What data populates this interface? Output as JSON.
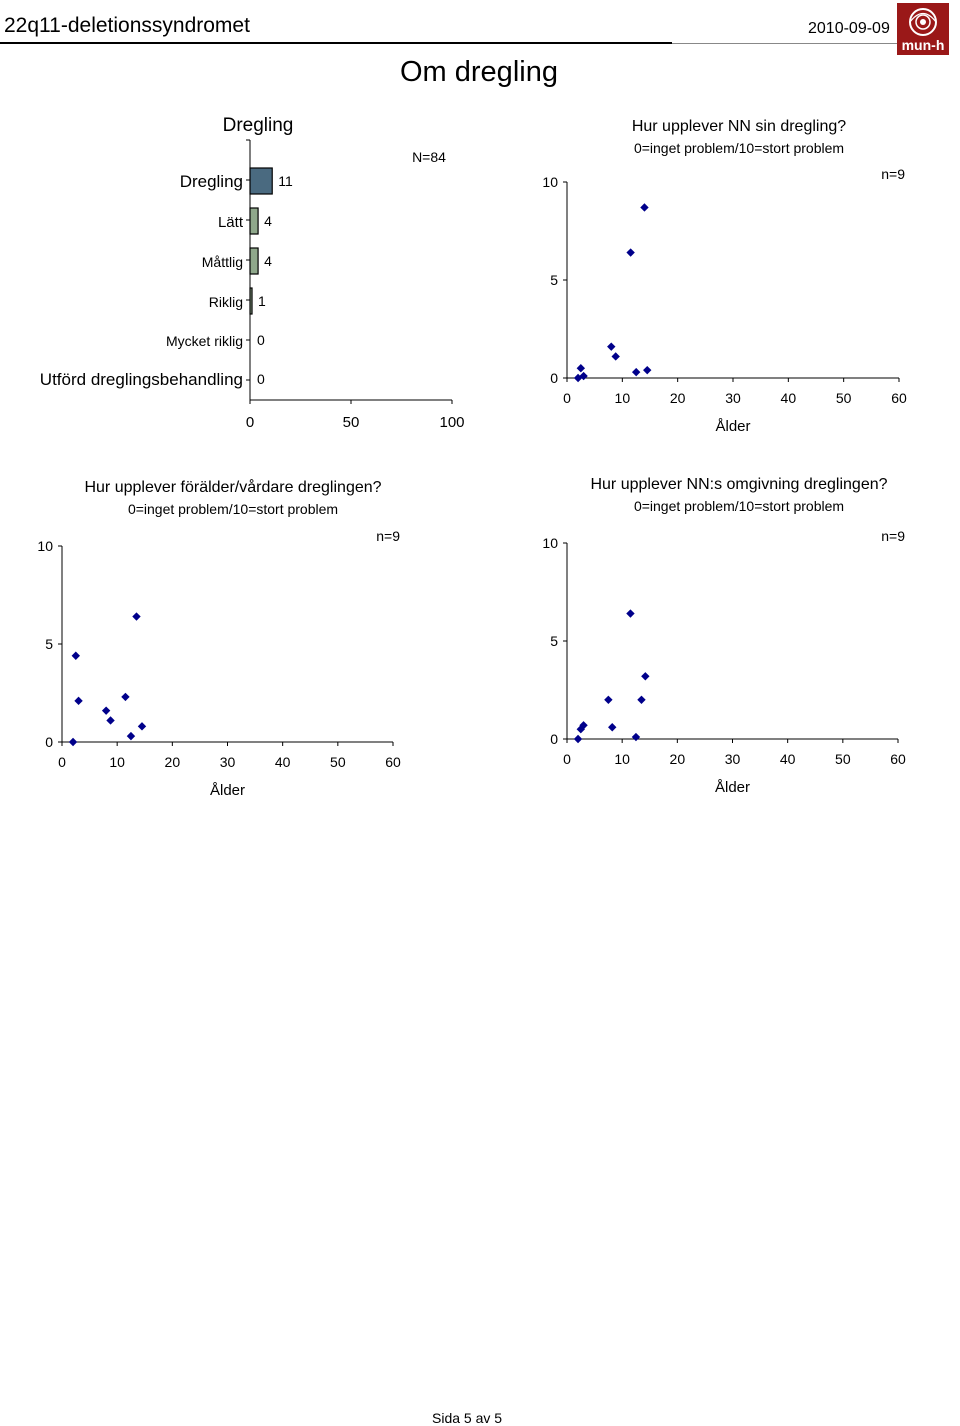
{
  "header": {
    "title": "22q11-deletionssyndromet",
    "date": "2010-09-09",
    "logo_text": "mun-h",
    "logo_color": "#9a1818"
  },
  "page": {
    "heading": "Om dregling",
    "footer": "Sida 5 av 5"
  },
  "chart_data": [
    {
      "type": "bar",
      "orientation": "horizontal",
      "title": "Dregling",
      "n_label": "N=84",
      "categories": [
        "Dregling",
        "Lätt",
        "Måttlig",
        "Riklig",
        "Mycket riklig",
        "Utförd dreglingsbehandling"
      ],
      "values": [
        11,
        4,
        4,
        1,
        0,
        0
      ],
      "value_labels": [
        "11",
        "4",
        "4",
        "1",
        "0",
        "0"
      ],
      "bar_colors": [
        "#4a6a80",
        "#8fa88b",
        "#8fa88b",
        "#8fa88b",
        "#8fa88b",
        "#8fa88b"
      ],
      "xlim": [
        0,
        100
      ],
      "x_ticks": [
        "0",
        "50",
        "100"
      ]
    },
    {
      "type": "scatter",
      "title": "Hur upplever NN sin dregling?",
      "subtitle": "0=inget problem/10=stort problem",
      "n_label": "n=9",
      "xlabel": "Ålder",
      "xlim": [
        0,
        60
      ],
      "ylim": [
        0,
        10
      ],
      "x_ticks": [
        "0",
        "10",
        "20",
        "30",
        "40",
        "50",
        "60"
      ],
      "y_ticks": [
        "0",
        "5",
        "10"
      ],
      "marker_color": "#00008b",
      "points": [
        [
          2.0,
          0.0
        ],
        [
          2.5,
          0.5
        ],
        [
          3.0,
          0.1
        ],
        [
          8.0,
          1.6
        ],
        [
          8.8,
          1.1
        ],
        [
          11.5,
          6.4
        ],
        [
          12.5,
          0.3
        ],
        [
          14.0,
          8.7
        ],
        [
          14.5,
          0.4
        ]
      ]
    },
    {
      "type": "scatter",
      "title": "Hur upplever förälder/vårdare dreglingen?",
      "subtitle": "0=inget problem/10=stort problem",
      "n_label": "n=9",
      "xlabel": "Ålder",
      "xlim": [
        0,
        60
      ],
      "ylim": [
        0,
        10
      ],
      "x_ticks": [
        "0",
        "10",
        "20",
        "30",
        "40",
        "50",
        "60"
      ],
      "y_ticks": [
        "0",
        "5",
        "10"
      ],
      "marker_color": "#00008b",
      "points": [
        [
          2.0,
          0.0
        ],
        [
          2.5,
          4.4
        ],
        [
          3.0,
          2.1
        ],
        [
          8.0,
          1.6
        ],
        [
          8.8,
          1.1
        ],
        [
          11.5,
          2.3
        ],
        [
          12.5,
          0.3
        ],
        [
          13.5,
          6.4
        ],
        [
          14.5,
          0.8
        ]
      ]
    },
    {
      "type": "scatter",
      "title": "Hur upplever NN:s omgivning dreglingen?",
      "subtitle": "0=inget problem/10=stort problem",
      "n_label": "n=9",
      "xlabel": "Ålder",
      "xlim": [
        0,
        60
      ],
      "ylim": [
        0,
        10
      ],
      "x_ticks": [
        "0",
        "10",
        "20",
        "30",
        "40",
        "50",
        "60"
      ],
      "y_ticks": [
        "0",
        "5",
        "10"
      ],
      "marker_color": "#00008b",
      "points": [
        [
          2.0,
          0.0
        ],
        [
          2.5,
          0.5
        ],
        [
          3.0,
          0.7
        ],
        [
          7.5,
          2.0
        ],
        [
          8.2,
          0.6
        ],
        [
          11.5,
          6.4
        ],
        [
          12.5,
          0.1
        ],
        [
          13.5,
          2.0
        ],
        [
          14.2,
          3.2
        ]
      ]
    }
  ]
}
